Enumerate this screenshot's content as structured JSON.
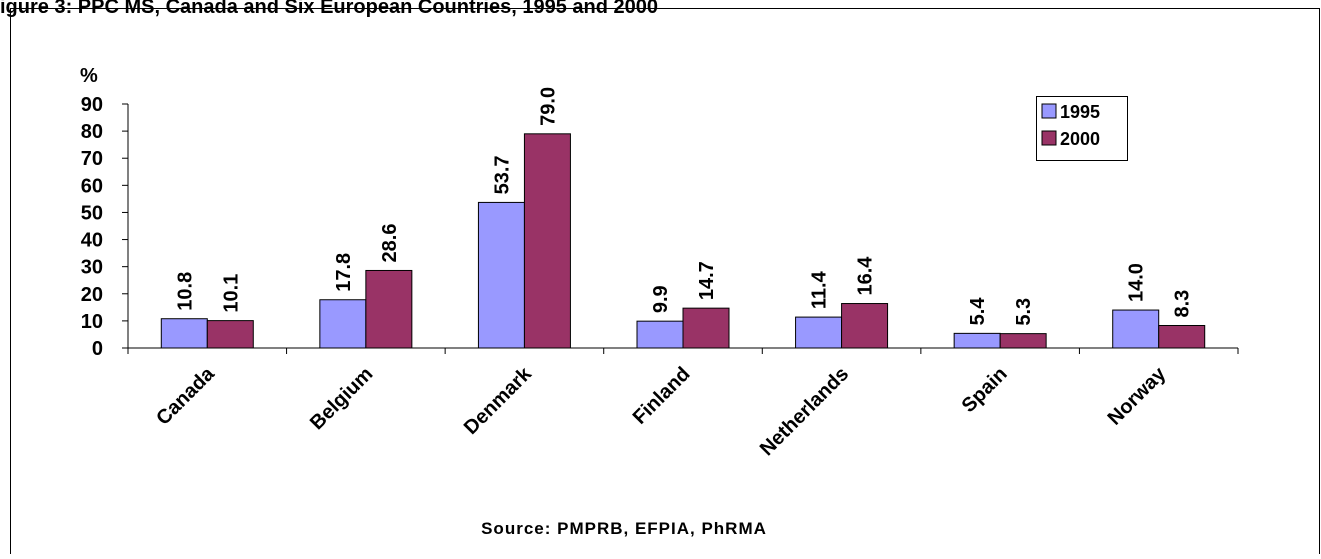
{
  "chart_data": {
    "type": "bar",
    "title": "igure 3: PPC MS, Canada and Six European Countries, 1995 and 2000",
    "ylabel": "%",
    "xlabel": "",
    "ylim": [
      0,
      90
    ],
    "yticks": [
      0,
      10,
      20,
      30,
      40,
      50,
      60,
      70,
      80,
      90
    ],
    "categories": [
      "Canada",
      "Belgium",
      "Denmark",
      "Finland",
      "Netherlands",
      "Spain",
      "Norway"
    ],
    "series": [
      {
        "name": "1995",
        "color": "#9999ff",
        "values": [
          10.8,
          17.8,
          53.7,
          9.9,
          11.4,
          5.4,
          14.0
        ],
        "labels": [
          "10.8",
          "17.8",
          "53.7",
          "9.9",
          "11.4",
          "5.4",
          "14.0"
        ]
      },
      {
        "name": "2000",
        "color": "#993366",
        "values": [
          10.1,
          28.6,
          79.0,
          14.7,
          16.4,
          5.3,
          8.3
        ],
        "labels": [
          "10.1",
          "28.6",
          "79.0",
          "14.7",
          "16.4",
          "5.3",
          "8.3"
        ]
      }
    ],
    "legend_position": "top-right",
    "grid": false,
    "source": "Source: PMPRB, EFPIA, PhRMA"
  }
}
